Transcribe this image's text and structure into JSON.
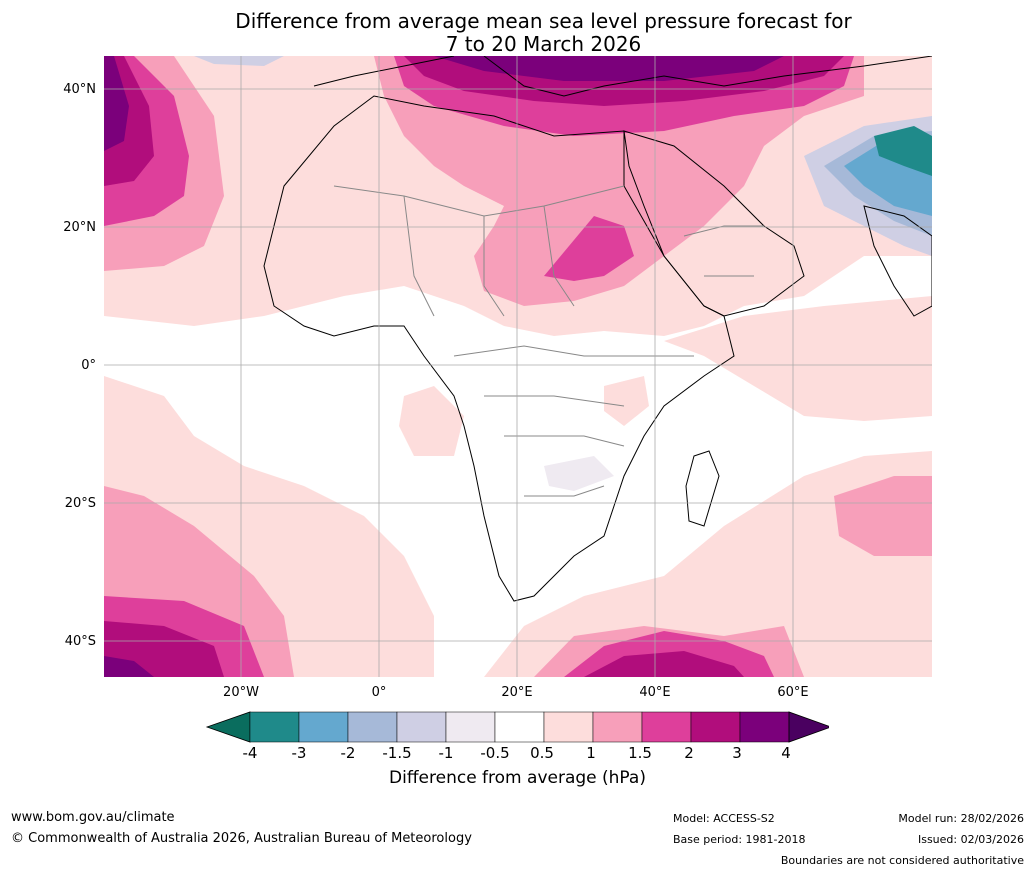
{
  "title": {
    "line1": "Difference from average mean sea level pressure forecast for",
    "line2": "7 to 20 March 2026"
  },
  "map": {
    "lat_labels": [
      "40°N",
      "20°N",
      "0°",
      "20°S",
      "40°S"
    ],
    "lon_labels": [
      "20°W",
      "0°",
      "20°E",
      "40°E",
      "60°E"
    ]
  },
  "colorbar": {
    "title": "Difference from average (hPa)",
    "ticks": [
      "-4",
      "-3",
      "-2",
      "-1.5",
      "-1",
      "-0.5",
      "0.5",
      "1",
      "1.5",
      "2",
      "3",
      "4"
    ],
    "colors": [
      "#1f8a8a",
      "#64a8cf",
      "#a6b9d8",
      "#cfcfe4",
      "#efeaf1",
      "#ffffff",
      "#fddddc",
      "#f79fba",
      "#de3f9b",
      "#b10d7c",
      "#7b007b"
    ],
    "extend_low": "#0a6d5e",
    "extend_high": "#4a0060"
  },
  "footer": {
    "url": "www.bom.gov.au/climate",
    "copyright": "© Commonwealth of Australia 2026, Australian Bureau of Meteorology",
    "model": "Model: ACCESS-S2",
    "base_period": "Base period: 1981-2018",
    "model_run": "Model run: 28/02/2026",
    "issued": "Issued: 02/03/2026",
    "boundaries": "Boundaries are not considered authoritative"
  }
}
